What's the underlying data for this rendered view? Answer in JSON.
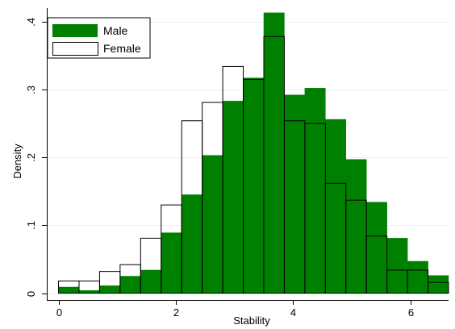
{
  "chart_data": {
    "type": "bar",
    "subtype": "overlaid-histogram",
    "xlabel": "Stability",
    "ylabel": "Density",
    "xlim": [
      -0.2,
      6.65
    ],
    "ylim": [
      -0.01,
      0.42
    ],
    "x_ticks": [
      0,
      2,
      4,
      6
    ],
    "x_tick_labels": [
      "0",
      "2",
      "4",
      "6"
    ],
    "y_ticks": [
      0,
      0.1,
      0.2,
      0.3,
      0.4
    ],
    "y_tick_labels": [
      "0",
      ".1",
      ".2",
      ".3",
      ".4"
    ],
    "grid": "horizontal",
    "legend_position": "top-left",
    "bin_edges": [
      0,
      0.35,
      0.7,
      1.05,
      1.4,
      1.75,
      2.1,
      2.45,
      2.8,
      3.15,
      3.5,
      3.85,
      4.2,
      4.55,
      4.9,
      5.25,
      5.6,
      5.95,
      6.3,
      6.65
    ],
    "series": [
      {
        "name": "Male",
        "fill": "#008000",
        "values": [
          0.009,
          0.004,
          0.011,
          0.025,
          0.034,
          0.089,
          0.145,
          0.203,
          0.283,
          0.317,
          0.413,
          0.292,
          0.302,
          0.256,
          0.197,
          0.134,
          0.081,
          0.047,
          0.026
        ]
      },
      {
        "name": "Female",
        "fill": "none",
        "values": [
          0.018,
          0.018,
          0.032,
          0.042,
          0.081,
          0.13,
          0.254,
          0.281,
          0.334,
          0.315,
          0.378,
          0.254,
          0.25,
          0.162,
          0.137,
          0.084,
          0.034,
          0.034,
          0.016
        ]
      }
    ]
  }
}
